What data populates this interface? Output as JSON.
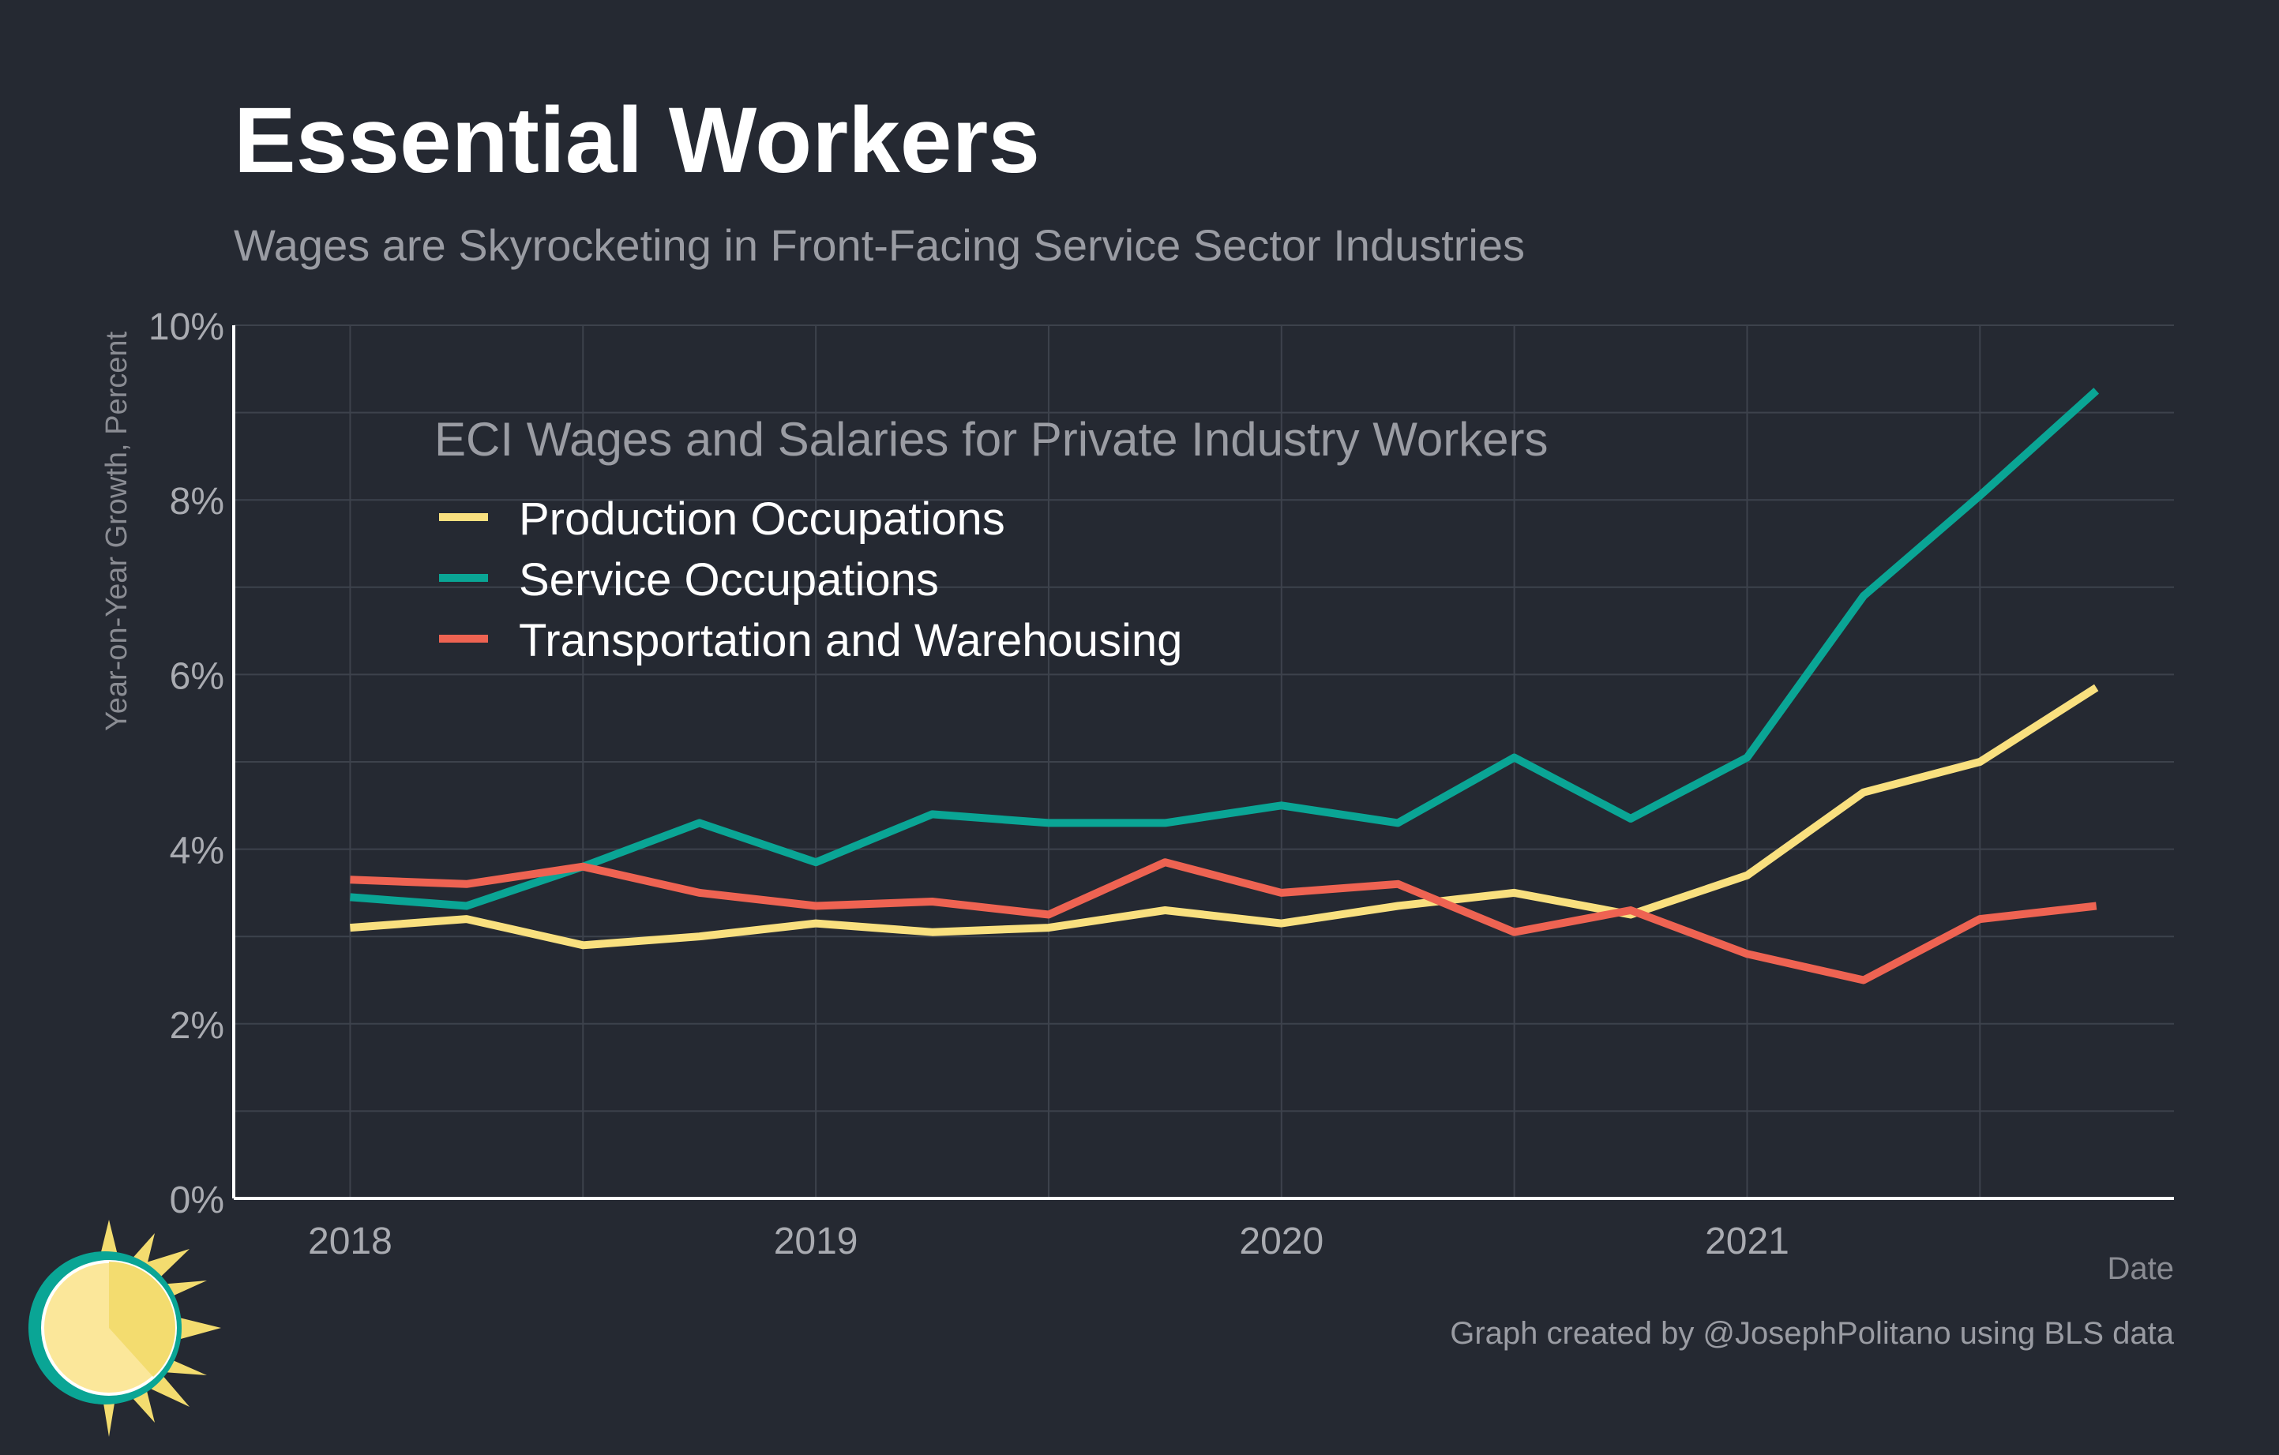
{
  "chart_data": {
    "type": "line",
    "title": "Essential Workers",
    "subtitle": "Wages are Skyrocketing in Front-Facing Service Sector Industries",
    "xlabel": "Date",
    "ylabel": "Year-on-Year Growth, Percent",
    "caption": "Graph created by @JosephPolitano using BLS data",
    "legend_title": "ECI Wages and Salaries for Private Industry Workers",
    "legend_position": "top-left",
    "grid": true,
    "xlim": [
      "2017-10",
      "2021-12"
    ],
    "ylim": [
      0,
      10
    ],
    "x_ticks": [
      "2018",
      "2019",
      "2020",
      "2021"
    ],
    "y_ticks": [
      "0%",
      "2%",
      "4%",
      "6%",
      "8%",
      "10%"
    ],
    "x": [
      "2018-Q1",
      "2018-Q2",
      "2018-Q3",
      "2018-Q4",
      "2019-Q1",
      "2019-Q2",
      "2019-Q3",
      "2019-Q4",
      "2020-Q1",
      "2020-Q2",
      "2020-Q3",
      "2020-Q4",
      "2021-Q1",
      "2021-Q2",
      "2021-Q3",
      "2021-Q4"
    ],
    "series": [
      {
        "name": "Production Occupations",
        "color": "#f9e07f",
        "values": [
          3.1,
          3.2,
          2.9,
          3.0,
          3.15,
          3.05,
          3.1,
          3.3,
          3.15,
          3.35,
          3.5,
          3.25,
          3.7,
          4.65,
          5.0,
          5.85
        ]
      },
      {
        "name": "Service Occupations",
        "color": "#0aa595",
        "values": [
          3.45,
          3.35,
          3.8,
          4.3,
          3.85,
          4.4,
          4.3,
          4.3,
          4.5,
          4.3,
          5.05,
          4.35,
          5.05,
          6.9,
          8.05,
          9.25
        ]
      },
      {
        "name": "Transportation and Warehousing",
        "color": "#ee6352",
        "values": [
          3.65,
          3.6,
          3.8,
          3.5,
          3.35,
          3.4,
          3.25,
          3.85,
          3.5,
          3.6,
          3.05,
          3.3,
          2.8,
          2.5,
          3.2,
          3.35
        ]
      }
    ]
  }
}
